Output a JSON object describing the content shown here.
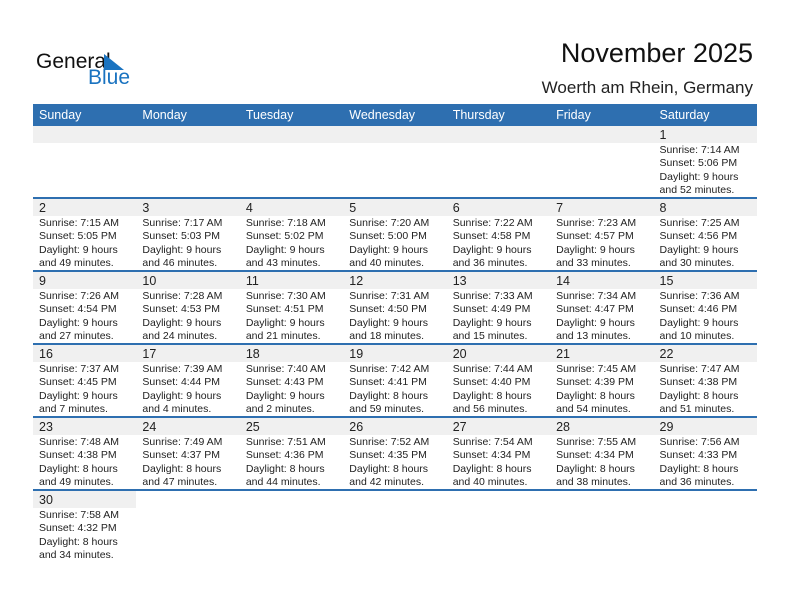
{
  "logo": {
    "word1": "General",
    "word2": "Blue",
    "color": "#1a73c0"
  },
  "title": "November 2025",
  "location": "Woerth am Rhein, Germany",
  "header_color": "#2e6fb0",
  "weekdays": [
    "Sunday",
    "Monday",
    "Tuesday",
    "Wednesday",
    "Thursday",
    "Friday",
    "Saturday"
  ],
  "first_weekday_offset": 6,
  "days": [
    {
      "day": "1",
      "sunrise": "Sunrise: 7:14 AM",
      "sunset": "Sunset: 5:06 PM",
      "daylight1": "Daylight: 9 hours",
      "daylight2": "and 52 minutes."
    },
    {
      "day": "2",
      "sunrise": "Sunrise: 7:15 AM",
      "sunset": "Sunset: 5:05 PM",
      "daylight1": "Daylight: 9 hours",
      "daylight2": "and 49 minutes."
    },
    {
      "day": "3",
      "sunrise": "Sunrise: 7:17 AM",
      "sunset": "Sunset: 5:03 PM",
      "daylight1": "Daylight: 9 hours",
      "daylight2": "and 46 minutes."
    },
    {
      "day": "4",
      "sunrise": "Sunrise: 7:18 AM",
      "sunset": "Sunset: 5:02 PM",
      "daylight1": "Daylight: 9 hours",
      "daylight2": "and 43 minutes."
    },
    {
      "day": "5",
      "sunrise": "Sunrise: 7:20 AM",
      "sunset": "Sunset: 5:00 PM",
      "daylight1": "Daylight: 9 hours",
      "daylight2": "and 40 minutes."
    },
    {
      "day": "6",
      "sunrise": "Sunrise: 7:22 AM",
      "sunset": "Sunset: 4:58 PM",
      "daylight1": "Daylight: 9 hours",
      "daylight2": "and 36 minutes."
    },
    {
      "day": "7",
      "sunrise": "Sunrise: 7:23 AM",
      "sunset": "Sunset: 4:57 PM",
      "daylight1": "Daylight: 9 hours",
      "daylight2": "and 33 minutes."
    },
    {
      "day": "8",
      "sunrise": "Sunrise: 7:25 AM",
      "sunset": "Sunset: 4:56 PM",
      "daylight1": "Daylight: 9 hours",
      "daylight2": "and 30 minutes."
    },
    {
      "day": "9",
      "sunrise": "Sunrise: 7:26 AM",
      "sunset": "Sunset: 4:54 PM",
      "daylight1": "Daylight: 9 hours",
      "daylight2": "and 27 minutes."
    },
    {
      "day": "10",
      "sunrise": "Sunrise: 7:28 AM",
      "sunset": "Sunset: 4:53 PM",
      "daylight1": "Daylight: 9 hours",
      "daylight2": "and 24 minutes."
    },
    {
      "day": "11",
      "sunrise": "Sunrise: 7:30 AM",
      "sunset": "Sunset: 4:51 PM",
      "daylight1": "Daylight: 9 hours",
      "daylight2": "and 21 minutes."
    },
    {
      "day": "12",
      "sunrise": "Sunrise: 7:31 AM",
      "sunset": "Sunset: 4:50 PM",
      "daylight1": "Daylight: 9 hours",
      "daylight2": "and 18 minutes."
    },
    {
      "day": "13",
      "sunrise": "Sunrise: 7:33 AM",
      "sunset": "Sunset: 4:49 PM",
      "daylight1": "Daylight: 9 hours",
      "daylight2": "and 15 minutes."
    },
    {
      "day": "14",
      "sunrise": "Sunrise: 7:34 AM",
      "sunset": "Sunset: 4:47 PM",
      "daylight1": "Daylight: 9 hours",
      "daylight2": "and 13 minutes."
    },
    {
      "day": "15",
      "sunrise": "Sunrise: 7:36 AM",
      "sunset": "Sunset: 4:46 PM",
      "daylight1": "Daylight: 9 hours",
      "daylight2": "and 10 minutes."
    },
    {
      "day": "16",
      "sunrise": "Sunrise: 7:37 AM",
      "sunset": "Sunset: 4:45 PM",
      "daylight1": "Daylight: 9 hours",
      "daylight2": "and 7 minutes."
    },
    {
      "day": "17",
      "sunrise": "Sunrise: 7:39 AM",
      "sunset": "Sunset: 4:44 PM",
      "daylight1": "Daylight: 9 hours",
      "daylight2": "and 4 minutes."
    },
    {
      "day": "18",
      "sunrise": "Sunrise: 7:40 AM",
      "sunset": "Sunset: 4:43 PM",
      "daylight1": "Daylight: 9 hours",
      "daylight2": "and 2 minutes."
    },
    {
      "day": "19",
      "sunrise": "Sunrise: 7:42 AM",
      "sunset": "Sunset: 4:41 PM",
      "daylight1": "Daylight: 8 hours",
      "daylight2": "and 59 minutes."
    },
    {
      "day": "20",
      "sunrise": "Sunrise: 7:44 AM",
      "sunset": "Sunset: 4:40 PM",
      "daylight1": "Daylight: 8 hours",
      "daylight2": "and 56 minutes."
    },
    {
      "day": "21",
      "sunrise": "Sunrise: 7:45 AM",
      "sunset": "Sunset: 4:39 PM",
      "daylight1": "Daylight: 8 hours",
      "daylight2": "and 54 minutes."
    },
    {
      "day": "22",
      "sunrise": "Sunrise: 7:47 AM",
      "sunset": "Sunset: 4:38 PM",
      "daylight1": "Daylight: 8 hours",
      "daylight2": "and 51 minutes."
    },
    {
      "day": "23",
      "sunrise": "Sunrise: 7:48 AM",
      "sunset": "Sunset: 4:38 PM",
      "daylight1": "Daylight: 8 hours",
      "daylight2": "and 49 minutes."
    },
    {
      "day": "24",
      "sunrise": "Sunrise: 7:49 AM",
      "sunset": "Sunset: 4:37 PM",
      "daylight1": "Daylight: 8 hours",
      "daylight2": "and 47 minutes."
    },
    {
      "day": "25",
      "sunrise": "Sunrise: 7:51 AM",
      "sunset": "Sunset: 4:36 PM",
      "daylight1": "Daylight: 8 hours",
      "daylight2": "and 44 minutes."
    },
    {
      "day": "26",
      "sunrise": "Sunrise: 7:52 AM",
      "sunset": "Sunset: 4:35 PM",
      "daylight1": "Daylight: 8 hours",
      "daylight2": "and 42 minutes."
    },
    {
      "day": "27",
      "sunrise": "Sunrise: 7:54 AM",
      "sunset": "Sunset: 4:34 PM",
      "daylight1": "Daylight: 8 hours",
      "daylight2": "and 40 minutes."
    },
    {
      "day": "28",
      "sunrise": "Sunrise: 7:55 AM",
      "sunset": "Sunset: 4:34 PM",
      "daylight1": "Daylight: 8 hours",
      "daylight2": "and 38 minutes."
    },
    {
      "day": "29",
      "sunrise": "Sunrise: 7:56 AM",
      "sunset": "Sunset: 4:33 PM",
      "daylight1": "Daylight: 8 hours",
      "daylight2": "and 36 minutes."
    },
    {
      "day": "30",
      "sunrise": "Sunrise: 7:58 AM",
      "sunset": "Sunset: 4:32 PM",
      "daylight1": "Daylight: 8 hours",
      "daylight2": "and 34 minutes."
    }
  ]
}
